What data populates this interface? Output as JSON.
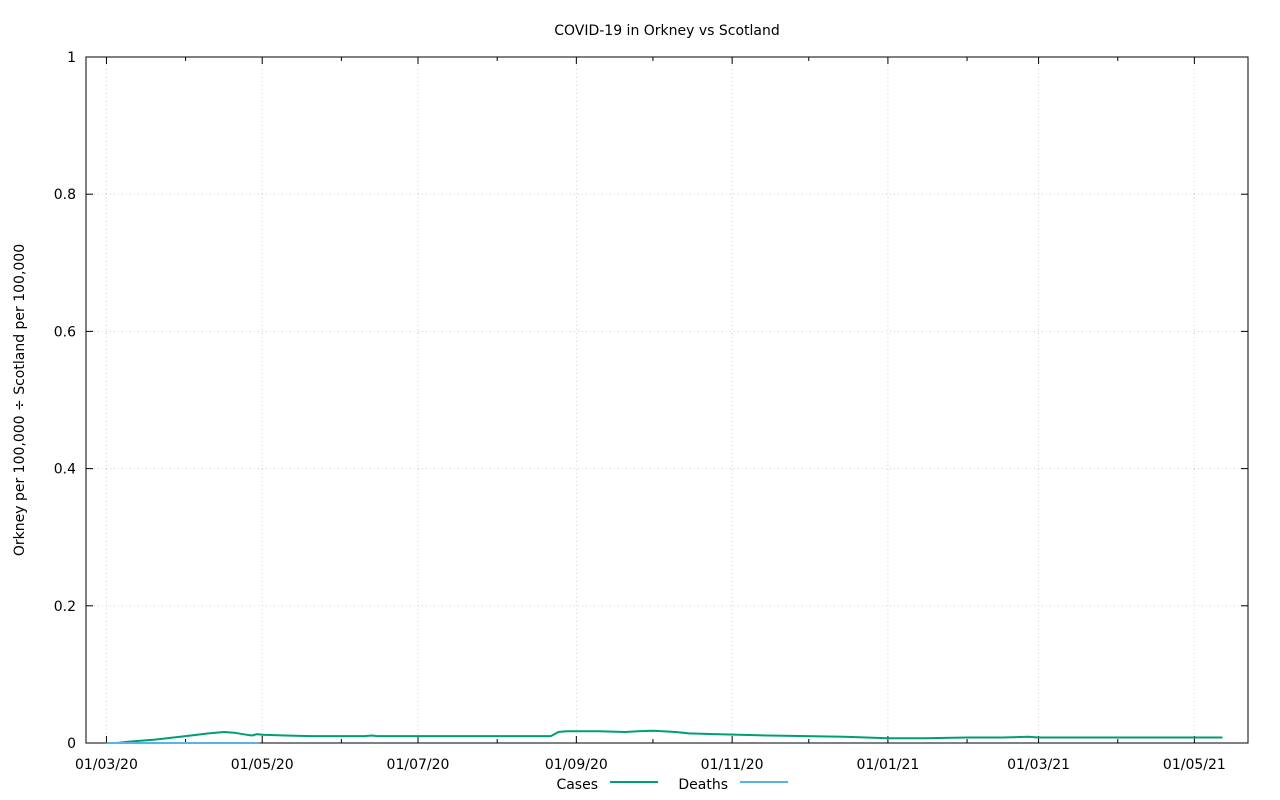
{
  "chart_data": {
    "type": "line",
    "title": "COVID-19 in Orkney vs Scotland",
    "xlabel": "",
    "ylabel": "Orkney per 100,000 ÷ Scotland per 100,000",
    "x_type": "date",
    "xlim": [
      "2020-02-22",
      "2021-05-22"
    ],
    "ylim": [
      0,
      1
    ],
    "x_ticks": [
      {
        "date": "2020-03-01",
        "label": "01/03/20"
      },
      {
        "date": "2020-05-01",
        "label": "01/05/20"
      },
      {
        "date": "2020-07-01",
        "label": "01/07/20"
      },
      {
        "date": "2020-09-01",
        "label": "01/09/20"
      },
      {
        "date": "2020-11-01",
        "label": "01/11/20"
      },
      {
        "date": "2021-01-01",
        "label": "01/01/21"
      },
      {
        "date": "2021-03-01",
        "label": "01/03/21"
      },
      {
        "date": "2021-05-01",
        "label": "01/05/21"
      }
    ],
    "y_ticks": [
      {
        "value": 0,
        "label": "0"
      },
      {
        "value": 0.2,
        "label": "0.2"
      },
      {
        "value": 0.4,
        "label": "0.4"
      },
      {
        "value": 0.6,
        "label": "0.6"
      },
      {
        "value": 0.8,
        "label": "0.8"
      },
      {
        "value": 1,
        "label": "1"
      }
    ],
    "grid": true,
    "legend_position": "bottom-center",
    "series": [
      {
        "name": "Cases",
        "color": "#009e73",
        "points": [
          [
            "2020-03-01",
            0.0
          ],
          [
            "2020-03-05",
            0.0
          ],
          [
            "2020-03-10",
            0.002
          ],
          [
            "2020-03-20",
            0.005
          ],
          [
            "2020-04-01",
            0.01
          ],
          [
            "2020-04-10",
            0.014
          ],
          [
            "2020-04-16",
            0.016
          ],
          [
            "2020-04-20",
            0.015
          ],
          [
            "2020-04-25",
            0.012
          ],
          [
            "2020-04-27",
            0.011
          ],
          [
            "2020-04-29",
            0.013
          ],
          [
            "2020-05-01",
            0.012
          ],
          [
            "2020-05-10",
            0.011
          ],
          [
            "2020-05-20",
            0.01
          ],
          [
            "2020-06-10",
            0.01
          ],
          [
            "2020-06-13",
            0.011
          ],
          [
            "2020-06-15",
            0.01
          ],
          [
            "2020-07-15",
            0.01
          ],
          [
            "2020-08-20",
            0.01
          ],
          [
            "2020-08-22",
            0.01
          ],
          [
            "2020-08-25",
            0.016
          ],
          [
            "2020-08-28",
            0.017
          ],
          [
            "2020-09-10",
            0.017
          ],
          [
            "2020-09-20",
            0.016
          ],
          [
            "2020-09-25",
            0.017
          ],
          [
            "2020-10-01",
            0.018
          ],
          [
            "2020-10-10",
            0.016
          ],
          [
            "2020-10-15",
            0.014
          ],
          [
            "2020-10-25",
            0.013
          ],
          [
            "2020-11-15",
            0.011
          ],
          [
            "2020-12-15",
            0.009
          ],
          [
            "2021-01-01",
            0.007
          ],
          [
            "2021-01-15",
            0.007
          ],
          [
            "2021-02-01",
            0.008
          ],
          [
            "2021-02-15",
            0.008
          ],
          [
            "2021-02-25",
            0.009
          ],
          [
            "2021-03-01",
            0.008
          ],
          [
            "2021-04-01",
            0.008
          ],
          [
            "2021-05-12",
            0.008
          ]
        ]
      },
      {
        "name": "Deaths",
        "color": "#56b4e9",
        "points": [
          [
            "2020-03-01",
            0
          ],
          [
            "2020-04-30",
            0
          ]
        ]
      }
    ]
  }
}
